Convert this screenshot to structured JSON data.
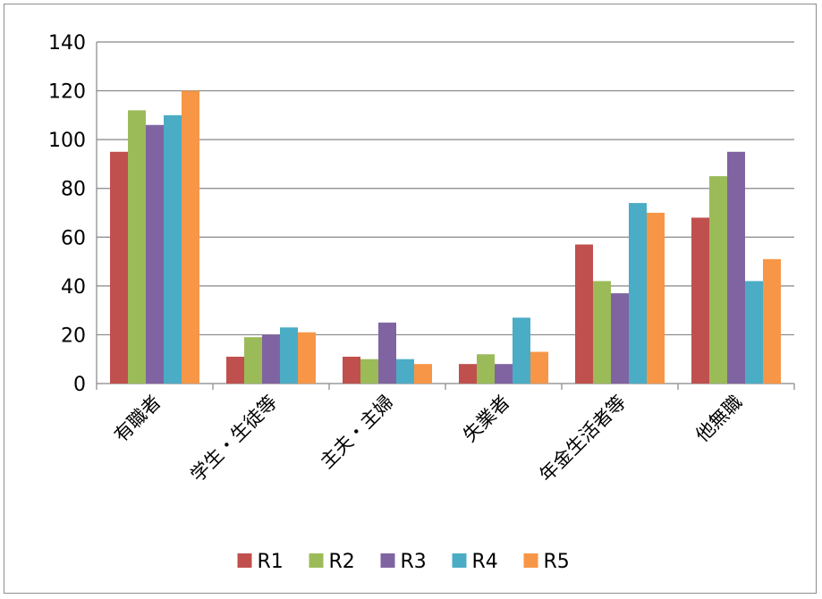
{
  "chart_data": {
    "type": "bar",
    "categories": [
      "有職者",
      "学生・生徒等",
      "主夫・主婦",
      "失業者",
      "年金生活者等",
      "他無職"
    ],
    "series": [
      {
        "name": "R1",
        "values": [
          95,
          11,
          11,
          8,
          57,
          68
        ]
      },
      {
        "name": "R2",
        "values": [
          112,
          19,
          10,
          12,
          42,
          85
        ]
      },
      {
        "name": "R3",
        "values": [
          106,
          20,
          25,
          8,
          37,
          95
        ]
      },
      {
        "name": "R4",
        "values": [
          110,
          23,
          10,
          27,
          74,
          42
        ]
      },
      {
        "name": "R5",
        "values": [
          120,
          21,
          8,
          13,
          70,
          51
        ]
      }
    ],
    "ylim": [
      0,
      140
    ],
    "yticks": [
      0,
      20,
      40,
      60,
      80,
      100,
      120,
      140
    ],
    "grid": true,
    "legend": "bottom",
    "colors": [
      "#c0504d",
      "#9bbb59",
      "#8064a2",
      "#4bacc6",
      "#f79646"
    ]
  }
}
